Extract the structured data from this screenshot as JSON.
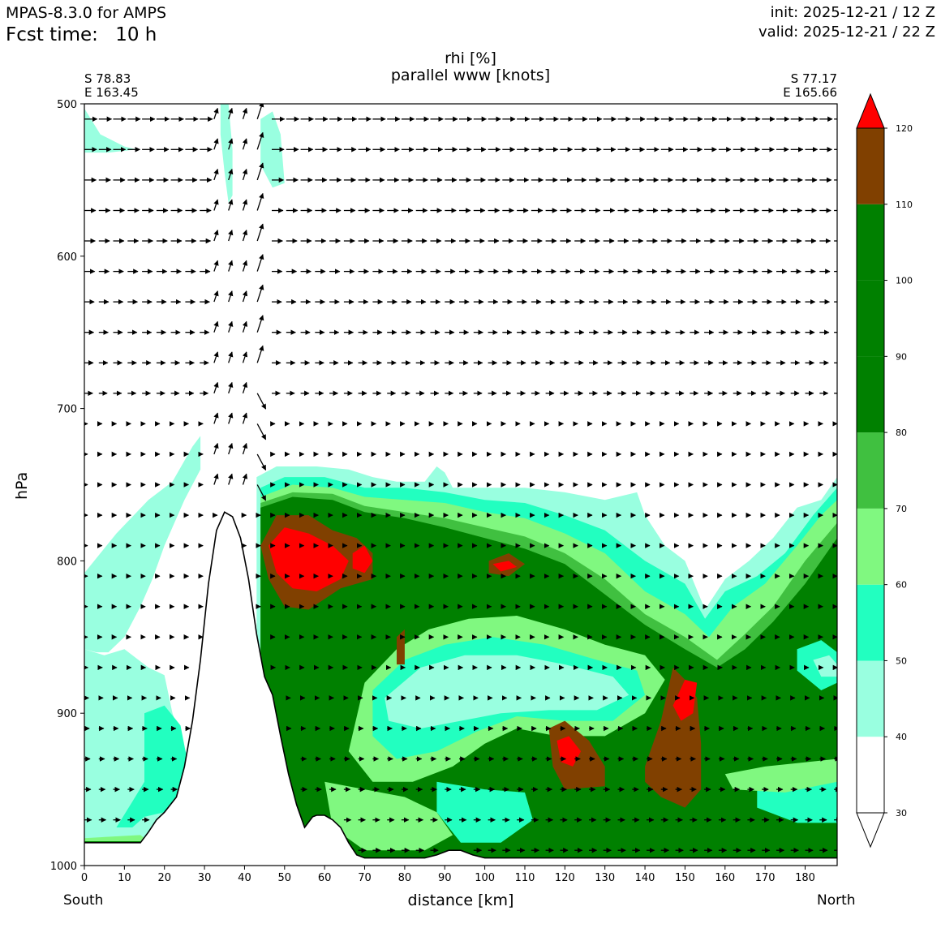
{
  "header": {
    "model": "MPAS-8.3.0 for AMPS",
    "fcst_label": "Fcst time:",
    "fcst_value": "10 h",
    "init": "init: 2025-12-21 / 12 Z",
    "valid": "valid: 2025-12-21 / 22 Z"
  },
  "chart_data": {
    "type": "heatmap",
    "title_line1": "rhi [%]",
    "title_line2": "parallel www [knots]",
    "xlabel": "distance [km]",
    "ylabel": "hPa",
    "xlim": [
      0,
      188
    ],
    "ylim": [
      1000,
      500
    ],
    "x_ticks": [
      0,
      10,
      20,
      30,
      40,
      50,
      60,
      70,
      80,
      90,
      100,
      110,
      120,
      130,
      140,
      150,
      160,
      170,
      180
    ],
    "y_ticks": [
      500,
      600,
      700,
      800,
      900,
      1000
    ],
    "left_end": {
      "lat": "S 78.83",
      "lon": "E 163.45",
      "label": "South"
    },
    "right_end": {
      "lat": "S 77.17",
      "lon": "E 165.66",
      "label": "North"
    },
    "colorbar": {
      "levels": [
        30,
        40,
        50,
        60,
        70,
        80,
        90,
        100,
        110,
        120
      ],
      "bands": [
        {
          "from": 30,
          "to": 40,
          "color": "#ffffff"
        },
        {
          "from": 40,
          "to": 50,
          "color": "#99ffe0"
        },
        {
          "from": 50,
          "to": 60,
          "color": "#22ffc0"
        },
        {
          "from": 60,
          "to": 70,
          "color": "#80f880"
        },
        {
          "from": 70,
          "to": 80,
          "color": "#40c040"
        },
        {
          "from": 80,
          "to": 110,
          "color": "#008000"
        },
        {
          "from": 110,
          "to": 120,
          "color": "#804000"
        },
        {
          "from": 120,
          "to": 130,
          "color": "#ff0000"
        }
      ],
      "extend": "both"
    },
    "terrain": {
      "x": [
        0,
        12,
        14,
        16,
        18,
        20,
        23,
        25,
        27,
        29,
        31,
        33,
        35,
        37,
        39,
        41,
        43,
        45,
        47,
        49,
        51,
        53,
        55,
        57,
        58,
        60,
        62,
        64,
        66,
        68,
        70,
        72,
        75,
        80,
        85,
        88,
        91,
        94,
        97,
        100,
        105,
        110,
        120,
        150,
        188
      ],
      "p": [
        985,
        985,
        985,
        978,
        970,
        965,
        955,
        935,
        905,
        865,
        815,
        780,
        768,
        771,
        785,
        812,
        848,
        876,
        888,
        915,
        940,
        960,
        975,
        968,
        967,
        967,
        970,
        975,
        985,
        993,
        995,
        995,
        995,
        995,
        995,
        993,
        990,
        990,
        993,
        995,
        995,
        995,
        995,
        995,
        995
      ]
    },
    "wind_levels_hpa": [
      510,
      530,
      550,
      570,
      590,
      610,
      630,
      650,
      670,
      690,
      710,
      730,
      750,
      770,
      790,
      810,
      830,
      850,
      870,
      890,
      910,
      930,
      950,
      970,
      990
    ],
    "wind_x_spacing_km": 3.6
  }
}
